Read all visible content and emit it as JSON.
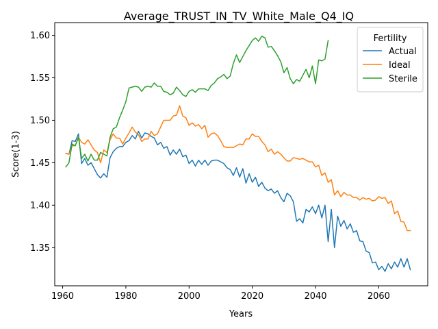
{
  "chart_data": {
    "type": "line",
    "title": "Average_TRUST_IN_TV_White_Male_Q4_IQ",
    "xlabel": "Years",
    "ylabel": "Score(1-3)",
    "xlim": [
      1957.5,
      2075.5
    ],
    "ylim": [
      1.305,
      1.615
    ],
    "xticks": [
      "1960",
      "1980",
      "2000",
      "2020",
      "2040",
      "2060"
    ],
    "yticks": [
      "1.35",
      "1.40",
      "1.45",
      "1.50",
      "1.55",
      "1.60"
    ],
    "grid": false,
    "legend": {
      "title": "Fertility",
      "position": "top-right"
    },
    "series": [
      {
        "name": "Actual",
        "color": "#1f77b4",
        "x": [
          1961,
          1962,
          1963,
          1964,
          1965,
          1966,
          1967,
          1968,
          1969,
          1970,
          1971,
          1972,
          1973,
          1974,
          1975,
          1976,
          1977,
          1978,
          1979,
          1980,
          1981,
          1982,
          1983,
          1984,
          1985,
          1986,
          1987,
          1988,
          1989,
          1990,
          1991,
          1992,
          1993,
          1994,
          1995,
          1996,
          1997,
          1998,
          1999,
          2000,
          2001,
          2002,
          2003,
          2004,
          2005,
          2006,
          2007,
          2008,
          2009,
          2010,
          2011,
          2012,
          2013,
          2014,
          2015,
          2016,
          2017,
          2018,
          2019,
          2020,
          2021,
          2022,
          2023,
          2024,
          2025,
          2026,
          2027,
          2028,
          2029,
          2030,
          2031,
          2032,
          2033,
          2034,
          2035,
          2036,
          2037,
          2038,
          2039,
          2040,
          2041,
          2042,
          2043,
          2044,
          2045,
          2046,
          2047,
          2048,
          2049,
          2050,
          2051,
          2052,
          2053,
          2054,
          2055,
          2056,
          2057,
          2058,
          2059,
          2060,
          2061,
          2062,
          2063,
          2064,
          2065,
          2066,
          2067,
          2068,
          2069,
          2070
        ],
        "values": [
          1.461,
          1.46,
          1.476,
          1.475,
          1.484,
          1.449,
          1.455,
          1.447,
          1.45,
          1.443,
          1.436,
          1.432,
          1.437,
          1.433,
          1.456,
          1.463,
          1.467,
          1.469,
          1.469,
          1.474,
          1.476,
          1.482,
          1.478,
          1.487,
          1.479,
          1.485,
          1.484,
          1.481,
          1.479,
          1.471,
          1.474,
          1.467,
          1.469,
          1.459,
          1.465,
          1.46,
          1.466,
          1.457,
          1.459,
          1.449,
          1.453,
          1.446,
          1.453,
          1.448,
          1.453,
          1.447,
          1.452,
          1.453,
          1.453,
          1.451,
          1.449,
          1.444,
          1.442,
          1.435,
          1.444,
          1.433,
          1.443,
          1.426,
          1.437,
          1.427,
          1.433,
          1.422,
          1.427,
          1.42,
          1.417,
          1.419,
          1.414,
          1.417,
          1.409,
          1.404,
          1.414,
          1.411,
          1.404,
          1.381,
          1.384,
          1.379,
          1.395,
          1.392,
          1.398,
          1.39,
          1.4,
          1.385,
          1.4,
          1.357,
          1.395,
          1.35,
          1.387,
          1.375,
          1.382,
          1.372,
          1.378,
          1.368,
          1.37,
          1.358,
          1.357,
          1.346,
          1.344,
          1.332,
          1.333,
          1.324,
          1.328,
          1.322,
          1.331,
          1.325,
          1.333,
          1.327,
          1.337,
          1.327,
          1.337,
          1.324
        ]
      },
      {
        "name": "Ideal",
        "color": "#ff7f0e",
        "x": [
          1961,
          1962,
          1963,
          1964,
          1965,
          1966,
          1967,
          1968,
          1969,
          1970,
          1971,
          1972,
          1973,
          1974,
          1975,
          1976,
          1977,
          1978,
          1979,
          1980,
          1981,
          1982,
          1983,
          1984,
          1985,
          1986,
          1987,
          1988,
          1989,
          1990,
          1991,
          1992,
          1993,
          1994,
          1995,
          1996,
          1997,
          1998,
          1999,
          2000,
          2001,
          2002,
          2003,
          2004,
          2005,
          2006,
          2007,
          2008,
          2009,
          2010,
          2011,
          2012,
          2013,
          2014,
          2015,
          2016,
          2017,
          2018,
          2019,
          2020,
          2021,
          2022,
          2023,
          2024,
          2025,
          2026,
          2027,
          2028,
          2029,
          2030,
          2031,
          2032,
          2033,
          2034,
          2035,
          2036,
          2037,
          2038,
          2039,
          2040,
          2041,
          2042,
          2043,
          2044,
          2045,
          2046,
          2047,
          2048,
          2049,
          2050,
          2051,
          2052,
          2053,
          2054,
          2055,
          2056,
          2057,
          2058,
          2059,
          2060,
          2061,
          2062,
          2063,
          2064,
          2065,
          2066,
          2067,
          2068,
          2069,
          2070
        ],
        "values": [
          1.461,
          1.46,
          1.47,
          1.47,
          1.48,
          1.474,
          1.472,
          1.477,
          1.471,
          1.465,
          1.462,
          1.45,
          1.465,
          1.462,
          1.477,
          1.484,
          1.479,
          1.479,
          1.472,
          1.479,
          1.485,
          1.492,
          1.486,
          1.483,
          1.475,
          1.478,
          1.478,
          1.487,
          1.482,
          1.484,
          1.492,
          1.5,
          1.5,
          1.5,
          1.505,
          1.506,
          1.517,
          1.505,
          1.503,
          1.494,
          1.497,
          1.493,
          1.495,
          1.49,
          1.494,
          1.48,
          1.484,
          1.485,
          1.482,
          1.476,
          1.469,
          1.468,
          1.468,
          1.468,
          1.47,
          1.472,
          1.471,
          1.478,
          1.478,
          1.484,
          1.481,
          1.481,
          1.475,
          1.471,
          1.463,
          1.466,
          1.46,
          1.463,
          1.46,
          1.456,
          1.452,
          1.452,
          1.456,
          1.455,
          1.454,
          1.455,
          1.453,
          1.451,
          1.451,
          1.445,
          1.447,
          1.435,
          1.438,
          1.427,
          1.43,
          1.412,
          1.417,
          1.41,
          1.415,
          1.412,
          1.412,
          1.409,
          1.409,
          1.406,
          1.409,
          1.407,
          1.408,
          1.405,
          1.406,
          1.41,
          1.408,
          1.409,
          1.402,
          1.405,
          1.39,
          1.393,
          1.381,
          1.38,
          1.37,
          1.37
        ]
      },
      {
        "name": "Sterile",
        "color": "#2ca02c",
        "x": [
          1961,
          1962,
          1963,
          1964,
          1965,
          1966,
          1967,
          1968,
          1969,
          1970,
          1971,
          1972,
          1973,
          1974,
          1975,
          1976,
          1977,
          1978,
          1979,
          1980,
          1981,
          1982,
          1983,
          1984,
          1985,
          1986,
          1987,
          1988,
          1989,
          1990,
          1991,
          1992,
          1993,
          1994,
          1995,
          1996,
          1997,
          1998,
          1999,
          2000,
          2001,
          2002,
          2003,
          2004,
          2005,
          2006,
          2007,
          2008,
          2009,
          2010,
          2011,
          2012,
          2013,
          2014,
          2015,
          2016,
          2017,
          2018,
          2019,
          2020,
          2021,
          2022,
          2023,
          2024,
          2025,
          2026,
          2027,
          2028,
          2029,
          2030,
          2031,
          2032,
          2033,
          2034,
          2035,
          2036,
          2037,
          2038,
          2039,
          2040,
          2041,
          2042,
          2043,
          2044
        ],
        "values": [
          1.445,
          1.45,
          1.472,
          1.47,
          1.48,
          1.455,
          1.46,
          1.452,
          1.46,
          1.453,
          1.453,
          1.462,
          1.46,
          1.458,
          1.48,
          1.49,
          1.492,
          1.503,
          1.512,
          1.522,
          1.538,
          1.539,
          1.54,
          1.539,
          1.534,
          1.539,
          1.54,
          1.539,
          1.544,
          1.54,
          1.54,
          1.534,
          1.533,
          1.53,
          1.532,
          1.539,
          1.535,
          1.53,
          1.528,
          1.534,
          1.536,
          1.533,
          1.537,
          1.537,
          1.537,
          1.535,
          1.541,
          1.544,
          1.549,
          1.551,
          1.554,
          1.549,
          1.552,
          1.567,
          1.577,
          1.568,
          1.575,
          1.582,
          1.588,
          1.594,
          1.597,
          1.593,
          1.599,
          1.597,
          1.586,
          1.587,
          1.582,
          1.576,
          1.569,
          1.556,
          1.562,
          1.549,
          1.543,
          1.548,
          1.546,
          1.553,
          1.56,
          1.55,
          1.564,
          1.543,
          1.571,
          1.57,
          1.572,
          1.594
        ]
      }
    ]
  }
}
